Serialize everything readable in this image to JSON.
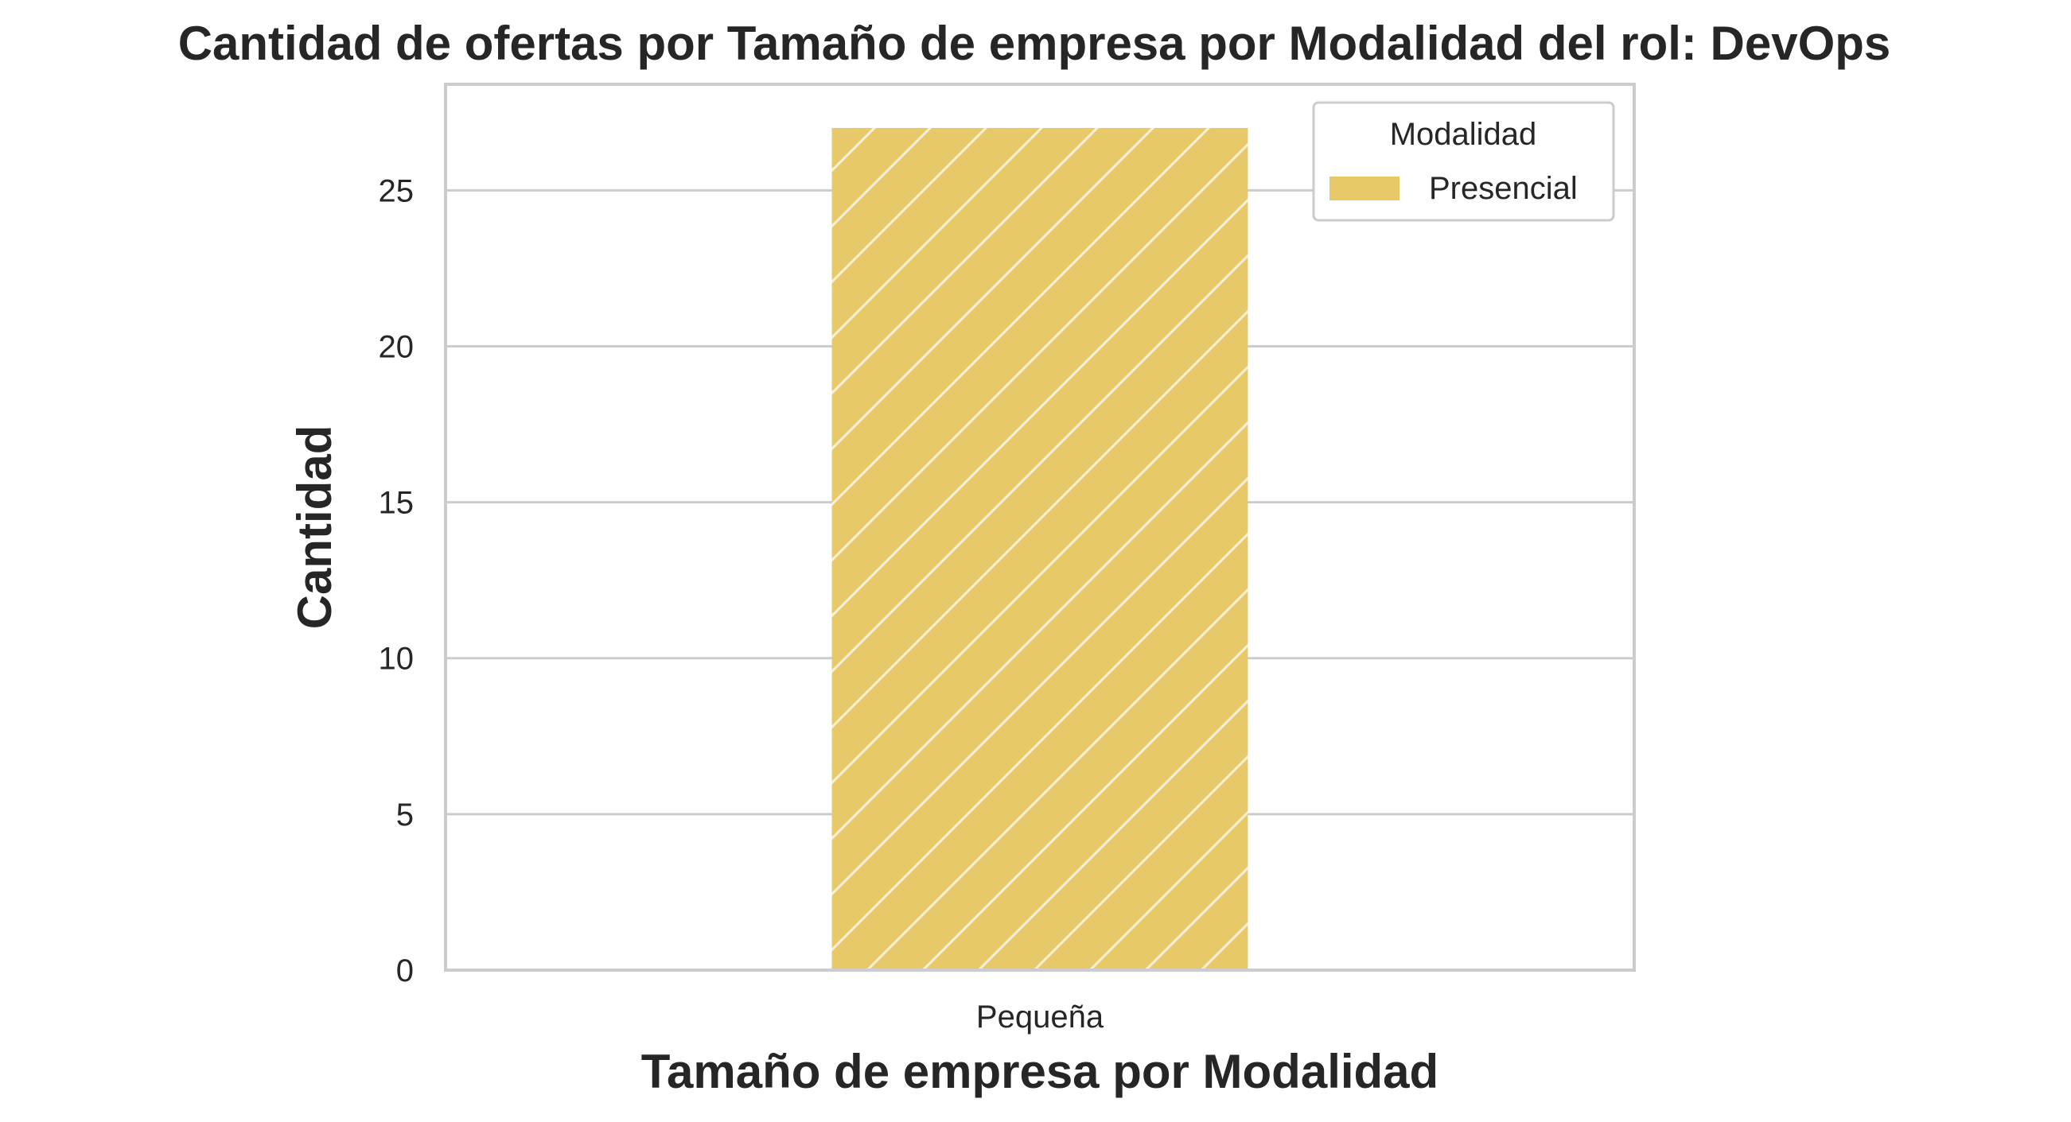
{
  "chart_data": {
    "type": "bar",
    "title": "Cantidad de ofertas por Tamaño de empresa por Modalidad del rol: DevOps",
    "xlabel": "Tamaño de empresa por Modalidad",
    "ylabel": "Cantidad",
    "categories": [
      "Pequeña"
    ],
    "series": [
      {
        "name": "Presencial",
        "values": [
          27
        ],
        "color": "#e8c96a",
        "hatch": "diagonal"
      }
    ],
    "ylim": [
      0,
      28.4
    ],
    "yticks": [
      0,
      5,
      10,
      15,
      20,
      25
    ],
    "grid": true,
    "legend": {
      "title": "Modalidad",
      "position": "top-right"
    }
  }
}
